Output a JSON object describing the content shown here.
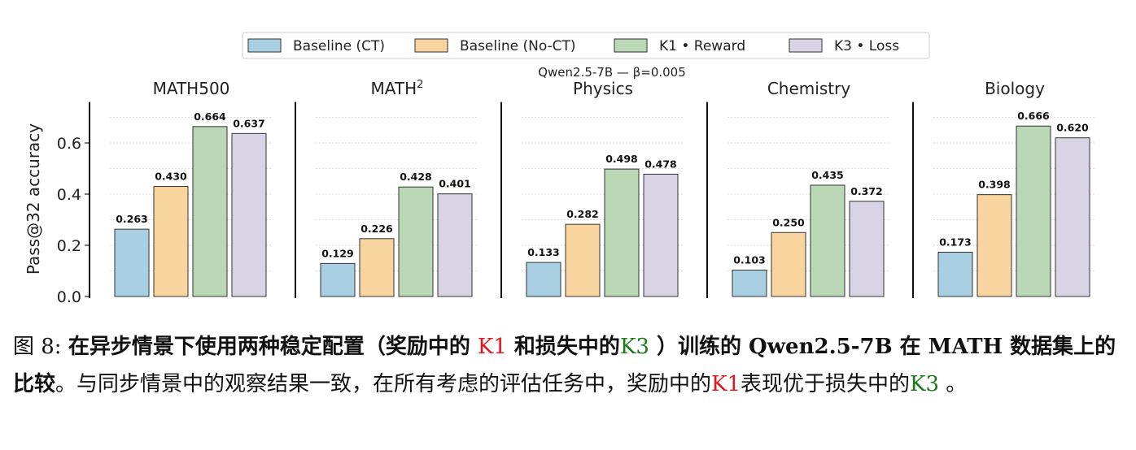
{
  "chart_data": {
    "type": "bar",
    "title": "Qwen2.5-7B — β=0.005",
    "ylabel": "Pass@32 accuracy",
    "ylim": [
      0,
      0.76
    ],
    "yticks": [
      "0.0",
      "0.2",
      "0.4",
      "0.6"
    ],
    "grid": "horizontal dotted every 0.1",
    "legend": {
      "placement": "top-center",
      "entries": [
        "Baseline (CT)",
        "Baseline (No-CT)",
        "K1 • Reward",
        "K3 • Loss"
      ]
    },
    "colors": [
      "#a8cfe2",
      "#f8d49e",
      "#bad8b6",
      "#d8d4e6"
    ],
    "panels": [
      {
        "title": "MATH500",
        "sup": "",
        "values": [
          0.263,
          0.43,
          0.664,
          0.637
        ],
        "labels": [
          "0.263",
          "0.430",
          "0.664",
          "0.637"
        ]
      },
      {
        "title": "MATH",
        "sup": "2",
        "values": [
          0.129,
          0.226,
          0.428,
          0.401
        ],
        "labels": [
          "0.129",
          "0.226",
          "0.428",
          "0.401"
        ]
      },
      {
        "title": "Physics",
        "sup": "",
        "values": [
          0.133,
          0.282,
          0.498,
          0.478
        ],
        "labels": [
          "0.133",
          "0.282",
          "0.498",
          "0.478"
        ]
      },
      {
        "title": "Chemistry",
        "sup": "",
        "values": [
          0.103,
          0.25,
          0.435,
          0.372
        ],
        "labels": [
          "0.103",
          "0.250",
          "0.435",
          "0.372"
        ]
      },
      {
        "title": "Biology",
        "sup": "",
        "values": [
          0.173,
          0.398,
          0.666,
          0.62
        ],
        "labels": [
          "0.173",
          "0.398",
          "0.666",
          "0.620"
        ]
      }
    ]
  },
  "caption": {
    "fig": "图 8: ",
    "bold1": "在异步情景下使用两种稳定配置（奖励中的 ",
    "k1": "K1",
    "bold2": " 和损失中的",
    "k3": "K3",
    "bold3": " ）训练的 Qwen2.5-7B 在 MATH 数据集上的比较",
    "normal1": "。与同步情景中的观察结果一致，在所有考虑的评估任务中，奖励中的",
    "k1b": "K1",
    "normal2": "表现优于损失中的",
    "k3b": "K3",
    "normal3": " 。"
  }
}
